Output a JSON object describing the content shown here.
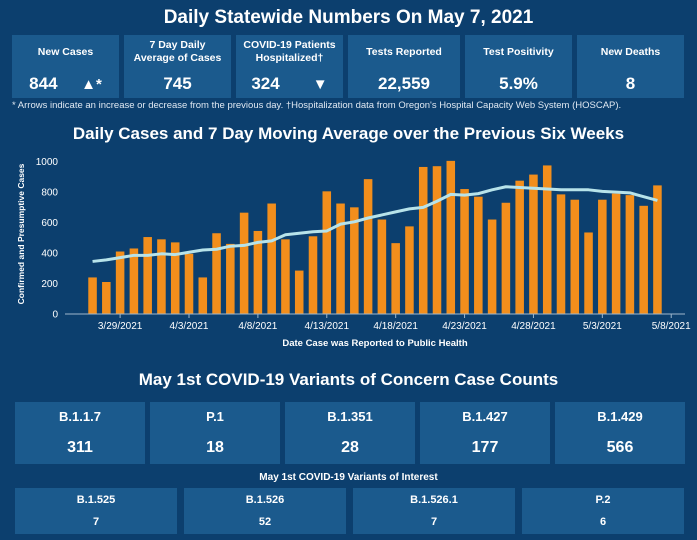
{
  "header": {
    "title": "Daily Statewide Numbers On May 7, 2021"
  },
  "stats": [
    {
      "label": "New Cases",
      "value": "844",
      "arrow": "▲*"
    },
    {
      "label": "7 Day Daily Average of Cases",
      "value": "745"
    },
    {
      "label": "COVID-19 Patients Hospitalized†",
      "value": "324",
      "arrow": "▼"
    },
    {
      "label": "Tests Reported",
      "value": "22,559"
    },
    {
      "label": "Test Positivity",
      "value": "5.9%"
    },
    {
      "label": "New Deaths",
      "value": "8"
    }
  ],
  "footnote": "* Arrows indicate an increase or decrease from the previous day. †Hospitalization data from Oregon's Hospital Capacity Web System (HOSCAP).",
  "colors": {
    "background": "#0c3f6e",
    "panel": "#1b5a8d",
    "bar": "#f28e1c",
    "line": "#b7e3ea"
  },
  "chart_data": {
    "type": "bar",
    "title": "Daily Cases and 7 Day Moving Average over the Previous Six Weeks",
    "xlabel": "Date Case was Reported to Public Health",
    "ylabel": "Confirmed and Presumptive Cases",
    "ylim": [
      0,
      1050
    ],
    "yticks": [
      0,
      200,
      400,
      600,
      800,
      1000
    ],
    "xlim": [
      "2021-03-25",
      "2021-05-09"
    ],
    "xticks": [
      "3/29/2021",
      "4/3/2021",
      "4/8/2021",
      "4/13/2021",
      "4/18/2021",
      "4/23/2021",
      "4/28/2021",
      "5/3/2021",
      "5/8/2021"
    ],
    "grid": false,
    "x": [
      "2021-03-27",
      "2021-03-28",
      "2021-03-29",
      "2021-03-30",
      "2021-03-31",
      "2021-04-01",
      "2021-04-02",
      "2021-04-03",
      "2021-04-04",
      "2021-04-05",
      "2021-04-06",
      "2021-04-07",
      "2021-04-08",
      "2021-04-09",
      "2021-04-10",
      "2021-04-11",
      "2021-04-12",
      "2021-04-13",
      "2021-04-14",
      "2021-04-15",
      "2021-04-16",
      "2021-04-17",
      "2021-04-18",
      "2021-04-19",
      "2021-04-20",
      "2021-04-21",
      "2021-04-22",
      "2021-04-23",
      "2021-04-24",
      "2021-04-25",
      "2021-04-26",
      "2021-04-27",
      "2021-04-28",
      "2021-04-29",
      "2021-04-30",
      "2021-05-01",
      "2021-05-02",
      "2021-05-03",
      "2021-05-04",
      "2021-05-05",
      "2021-05-06",
      "2021-05-07"
    ],
    "series": [
      {
        "name": "Daily Cases",
        "type": "bar",
        "values": [
          240,
          210,
          410,
          430,
          505,
          490,
          470,
          395,
          240,
          530,
          460,
          665,
          545,
          725,
          490,
          285,
          510,
          805,
          725,
          700,
          885,
          620,
          465,
          575,
          965,
          970,
          1005,
          820,
          770,
          620,
          730,
          875,
          915,
          975,
          785,
          750,
          535,
          750,
          790,
          780,
          710,
          844
        ]
      },
      {
        "name": "7 Day Moving Average",
        "type": "line",
        "values": [
          345,
          355,
          370,
          385,
          385,
          395,
          390,
          405,
          420,
          425,
          445,
          450,
          470,
          480,
          520,
          530,
          540,
          545,
          590,
          605,
          630,
          650,
          670,
          690,
          700,
          740,
          785,
          780,
          790,
          815,
          835,
          830,
          825,
          820,
          815,
          815,
          815,
          805,
          800,
          795,
          770,
          745
        ]
      }
    ]
  },
  "variants": {
    "title": "May 1st  COVID-19 Variants of Concern Case Counts",
    "items": [
      {
        "label": "B.1.1.7",
        "value": "311"
      },
      {
        "label": "P.1",
        "value": "18"
      },
      {
        "label": "B.1.351",
        "value": "28"
      },
      {
        "label": "B.1.427",
        "value": "177"
      },
      {
        "label": "B.1.429",
        "value": "566"
      }
    ]
  },
  "interest": {
    "title": "May 1st COVID-19 Variants of Interest",
    "items": [
      {
        "label": "B.1.525",
        "value": "7"
      },
      {
        "label": "B.1.526",
        "value": "52"
      },
      {
        "label": "B.1.526.1",
        "value": "7"
      },
      {
        "label": "P.2",
        "value": "6"
      }
    ]
  }
}
